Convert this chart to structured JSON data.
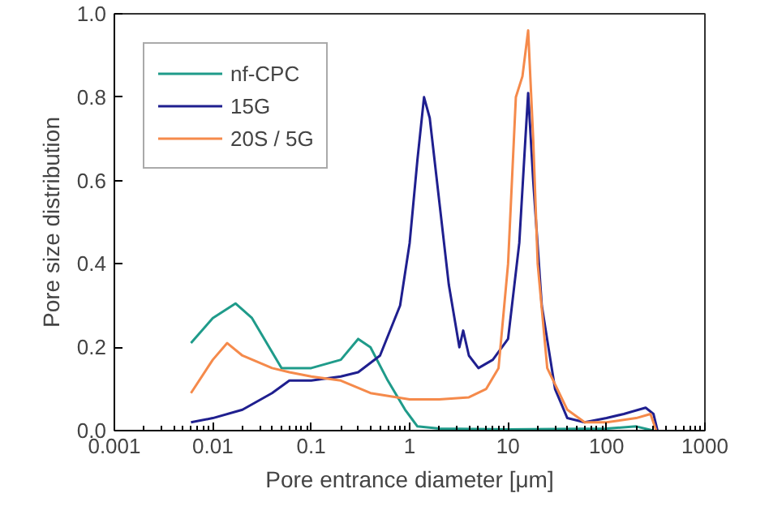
{
  "chart_data": {
    "type": "line",
    "xlabel": "Pore entrance diameter [μm]",
    "ylabel": "Pore size distribution",
    "log": "x",
    "grid": false,
    "legend": "top left",
    "marker": "none",
    "line_style": "solid",
    "xlim": [
      0.001,
      1000
    ],
    "xticks": [
      0.001,
      0.01,
      0.1,
      1,
      10,
      100,
      1000
    ],
    "ylim": [
      0,
      1
    ],
    "yticks": [
      {
        "value": 0,
        "label": "0.0"
      },
      {
        "value": 0.2,
        "label": "0.2"
      },
      {
        "value": 0.4,
        "label": "0.4"
      },
      {
        "value": 0.6,
        "label": "0.6"
      },
      {
        "value": 0.8,
        "label": "0.8"
      },
      {
        "value": 1,
        "label": "1.0"
      }
    ],
    "series": [
      {
        "name": "nf-CPC",
        "color": "#1f9b8a",
        "x": [
          0.006,
          0.01,
          0.017,
          0.025,
          0.05,
          0.1,
          0.2,
          0.3,
          0.4,
          0.6,
          0.9,
          1.2,
          2,
          10,
          100,
          200,
          300
        ],
        "values": [
          0.21,
          0.27,
          0.305,
          0.27,
          0.15,
          0.15,
          0.17,
          0.22,
          0.2,
          0.12,
          0.05,
          0.01,
          0.005,
          0.003,
          0.005,
          0.01,
          0.0
        ]
      },
      {
        "name": "15G",
        "color": "#1f1f8f",
        "x": [
          0.006,
          0.01,
          0.02,
          0.04,
          0.06,
          0.1,
          0.2,
          0.3,
          0.5,
          0.8,
          1.0,
          1.2,
          1.4,
          1.6,
          2,
          2.5,
          3.2,
          3.5,
          4,
          5,
          7,
          10,
          13,
          15,
          16,
          18,
          22,
          30,
          40,
          60,
          100,
          150,
          250,
          300,
          330
        ],
        "values": [
          0.02,
          0.03,
          0.05,
          0.09,
          0.12,
          0.12,
          0.13,
          0.14,
          0.18,
          0.3,
          0.45,
          0.65,
          0.8,
          0.75,
          0.55,
          0.35,
          0.2,
          0.24,
          0.18,
          0.15,
          0.17,
          0.22,
          0.45,
          0.7,
          0.81,
          0.6,
          0.3,
          0.1,
          0.03,
          0.02,
          0.03,
          0.04,
          0.055,
          0.04,
          0.0
        ]
      },
      {
        "name": "20S / 5G",
        "color": "#f58a4b",
        "x": [
          0.006,
          0.01,
          0.014,
          0.02,
          0.04,
          0.06,
          0.1,
          0.2,
          0.4,
          1,
          2,
          4,
          6,
          8,
          10,
          12,
          14,
          16,
          18,
          20,
          25,
          40,
          60,
          100,
          200,
          280,
          320
        ],
        "values": [
          0.09,
          0.17,
          0.21,
          0.18,
          0.15,
          0.14,
          0.13,
          0.12,
          0.09,
          0.075,
          0.075,
          0.08,
          0.1,
          0.15,
          0.4,
          0.8,
          0.85,
          0.96,
          0.7,
          0.4,
          0.15,
          0.05,
          0.02,
          0.02,
          0.03,
          0.04,
          0.0
        ]
      }
    ]
  }
}
